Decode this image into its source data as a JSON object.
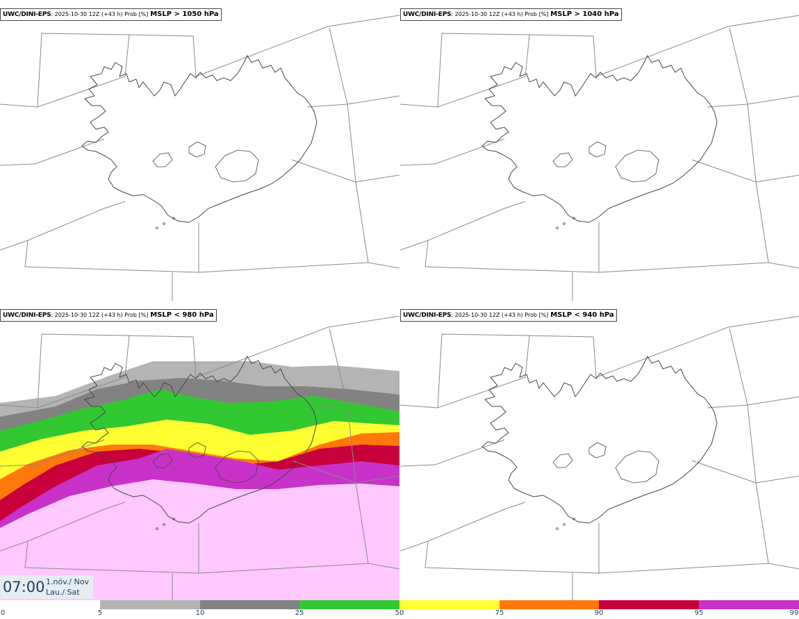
{
  "panels": [
    {
      "source": "UWC/DINI-EPS",
      "meta": ": 2025-10-30 12Z (+43 h) Prob [%]",
      "variable": "MSLP > 1050 hPa"
    },
    {
      "source": "UWC/DINI-EPS",
      "meta": ": 2025-10-30 12Z (+43 h) Prob [%]",
      "variable": "MSLP > 1040 hPa"
    },
    {
      "source": "UWC/DINI-EPS",
      "meta": ": 2025-10-30 12Z (+43 h) Prob [%]",
      "variable": "MSLP < 980 hPa"
    },
    {
      "source": "UWC/DINI-EPS",
      "meta": ": 2025-10-30 12Z (+43 h) Prob [%]",
      "variable": "MSLP < 940 hPa"
    }
  ],
  "valid_time": {
    "time": "07:00",
    "date_line1": "1.nóv./ Nov",
    "date_line2": "Lau./ Sat"
  },
  "legend": {
    "ticks": [
      "0",
      "5",
      "10",
      "25",
      "50",
      "75",
      "90",
      "95",
      "99"
    ],
    "colors": [
      "#ffffff",
      "#b4b4b4",
      "#828282",
      "#32c832",
      "#ffff32",
      "#ff780a",
      "#c8003c",
      "#c832c8",
      "#ffc8ff"
    ]
  }
}
